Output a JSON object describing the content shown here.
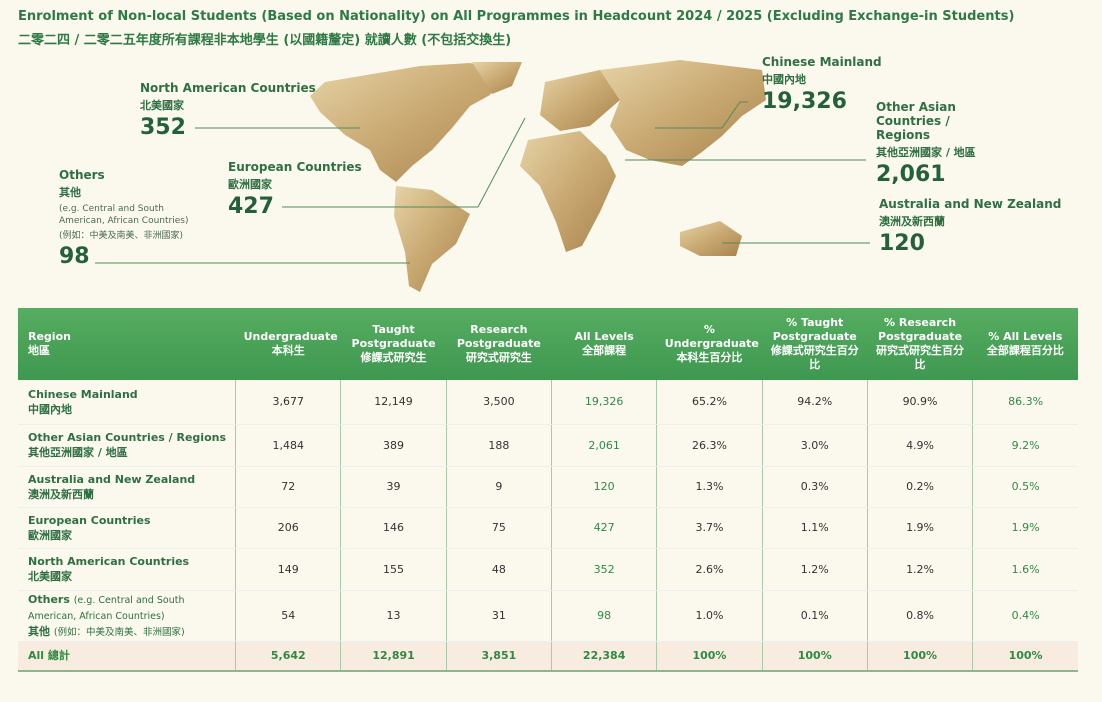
{
  "header": {
    "title": "Enrolment of Non-local Students (Based on Nationality) on All Programmes in Headcount 2024 / 2025 (Excluding Exchange-in Students)",
    "title_zh": "二零二四 / 二零二五年度所有課程非本地學生 (以國籍釐定) 就讀人數 (不包括交換生)"
  },
  "map_labels": [
    {
      "name": "North American Countries",
      "name_zh": "北美國家",
      "value": "352"
    },
    {
      "name": "Others",
      "name_zh": "其他",
      "note": "(e.g. Central and South American, African Countries)",
      "note_zh": "(例如：中美及南美、非洲國家)",
      "value": "98"
    },
    {
      "name": "European Countries",
      "name_zh": "歐洲國家",
      "value": "427"
    },
    {
      "name": "Chinese Mainland",
      "name_zh": "中國內地",
      "value": "19,326"
    },
    {
      "name": "Other Asian Countries / Regions",
      "name_zh": "其他亞洲國家 / 地區",
      "value": "2,061"
    },
    {
      "name": "Australia and New Zealand",
      "name_zh": "澳洲及新西蘭",
      "value": "120"
    }
  ],
  "table": {
    "columns": [
      {
        "en": "Region",
        "zh": "地區"
      },
      {
        "en": "Undergraduate",
        "zh": "本科生"
      },
      {
        "en": "Taught Postgraduate",
        "zh": "修課式研究生"
      },
      {
        "en": "Research Postgraduate",
        "zh": "研究式研究生"
      },
      {
        "en": "All Levels",
        "zh": "全部課程"
      },
      {
        "en": "% Undergraduate",
        "zh": "本科生百分比"
      },
      {
        "en": "% Taught Postgraduate",
        "zh": "修課式研究生百分比"
      },
      {
        "en": "% Research Postgraduate",
        "zh": "研究式研究生百分比"
      },
      {
        "en": "% All Levels",
        "zh": "全部課程百分比"
      }
    ],
    "rows": [
      {
        "name": "Chinese Mainland",
        "name_zh": "中國內地",
        "values": [
          "3,677",
          "12,149",
          "3,500",
          "19,326",
          "65.2%",
          "94.2%",
          "90.9%",
          "86.3%"
        ]
      },
      {
        "name": "Other Asian Countries / Regions",
        "name_zh": "其他亞洲國家 / 地區",
        "values": [
          "1,484",
          "389",
          "188",
          "2,061",
          "26.3%",
          "3.0%",
          "4.9%",
          "9.2%"
        ]
      },
      {
        "name": "Australia and New Zealand",
        "name_zh": "澳洲及新西蘭",
        "values": [
          "72",
          "39",
          "9",
          "120",
          "1.3%",
          "0.3%",
          "0.2%",
          "0.5%"
        ]
      },
      {
        "name": "European Countries",
        "name_zh": "歐洲國家",
        "values": [
          "206",
          "146",
          "75",
          "427",
          "3.7%",
          "1.1%",
          "1.9%",
          "1.9%"
        ]
      },
      {
        "name": "North American Countries",
        "name_zh": "北美國家",
        "values": [
          "149",
          "155",
          "48",
          "352",
          "2.6%",
          "1.2%",
          "1.2%",
          "1.6%"
        ]
      },
      {
        "name": "Others",
        "note": "(e.g. Central and South American, African Countries)",
        "name_zh": "其他",
        "note_zh": "(例如：中美及南美、非洲國家)",
        "values": [
          "54",
          "13",
          "31",
          "98",
          "1.0%",
          "0.1%",
          "0.8%",
          "0.4%"
        ]
      }
    ],
    "total": {
      "name": "All 總計",
      "values": [
        "5,642",
        "12,891",
        "3,851",
        "22,384",
        "100%",
        "100%",
        "100%",
        "100%"
      ]
    }
  }
}
